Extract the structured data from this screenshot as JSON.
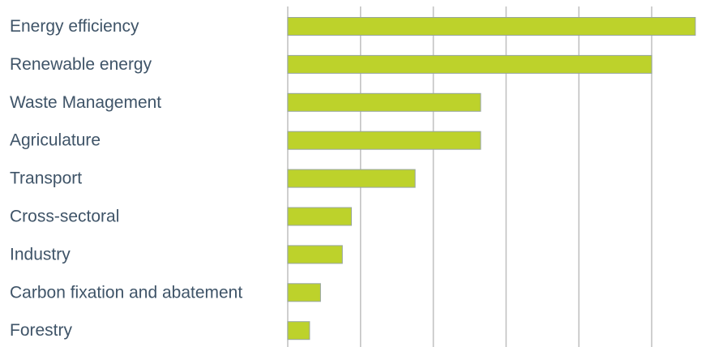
{
  "chart_data": {
    "type": "bar",
    "orientation": "horizontal",
    "categories": [
      "Energy efficiency",
      "Renewable energy",
      "Waste Management",
      "Agriculature",
      "Transport",
      "Cross-sectoral",
      "Industry",
      "Carbon fixation and abatement",
      "Forestry"
    ],
    "values": [
      11.2,
      10,
      5.3,
      5.3,
      3.5,
      1.75,
      1.5,
      0.9,
      0.6
    ],
    "xlim": [
      0,
      11.2
    ],
    "x_tick_step": 2,
    "tick_labels_shown": false,
    "grid": "vertical",
    "legend": "none",
    "title": "",
    "xlabel": "",
    "ylabel": "",
    "bar_color": "#bdd22b",
    "label_color": "#3f5468",
    "grid_color": "#c3c3c3"
  }
}
